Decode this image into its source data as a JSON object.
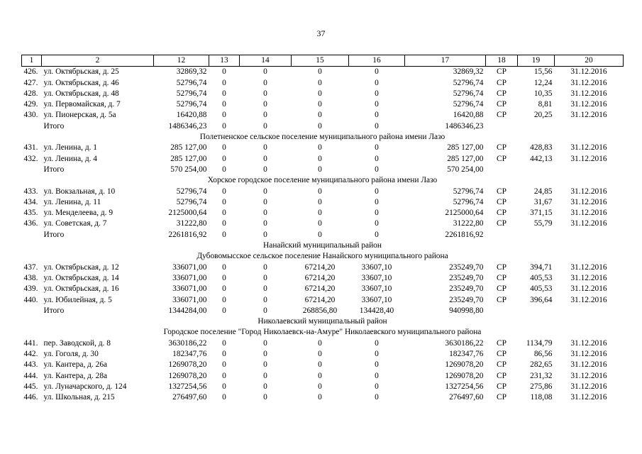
{
  "page_number": "37",
  "header": [
    "1",
    "2",
    "12",
    "13",
    "14",
    "15",
    "16",
    "17",
    "18",
    "19",
    "20"
  ],
  "rows": [
    {
      "type": "data",
      "cells": [
        "426.",
        "ул. Октябрьская, д. 25",
        "32869,32",
        "0",
        "0",
        "0",
        "0",
        "32869,32",
        "СР",
        "15,56",
        "31.12.2016"
      ]
    },
    {
      "type": "data",
      "cells": [
        "427.",
        "ул. Октябрьская, д. 46",
        "52796,74",
        "0",
        "0",
        "0",
        "0",
        "52796,74",
        "СР",
        "12,24",
        "31.12.2016"
      ]
    },
    {
      "type": "data",
      "cells": [
        "428.",
        "ул. Октябрьская, д. 48",
        "52796,74",
        "0",
        "0",
        "0",
        "0",
        "52796,74",
        "СР",
        "10,35",
        "31.12.2016"
      ]
    },
    {
      "type": "data",
      "cells": [
        "429.",
        "ул. Первомайская, д. 7",
        "52796,74",
        "0",
        "0",
        "0",
        "0",
        "52796,74",
        "СР",
        "8,81",
        "31.12.2016"
      ]
    },
    {
      "type": "data",
      "cells": [
        "430.",
        "ул. Пионерская, д. 5а",
        "16420,88",
        "0",
        "0",
        "0",
        "0",
        "16420,88",
        "СР",
        "20,25",
        "31.12.2016"
      ]
    },
    {
      "type": "total",
      "cells": [
        "Итого",
        "1486346,23",
        "0",
        "0",
        "0",
        "0",
        "1486346,23"
      ]
    },
    {
      "type": "section",
      "text": "Полетненское сельское поселение муниципального района имени Лазо"
    },
    {
      "type": "data",
      "cells": [
        "431.",
        "ул. Ленина, д. 1",
        "285 127,00",
        "0",
        "0",
        "0",
        "0",
        "285 127,00",
        "СР",
        "428,83",
        "31.12.2016"
      ]
    },
    {
      "type": "data",
      "cells": [
        "432.",
        "ул. Ленина, д. 4",
        "285 127,00",
        "0",
        "0",
        "0",
        "0",
        "285 127,00",
        "СР",
        "442,13",
        "31.12.2016"
      ]
    },
    {
      "type": "total",
      "cells": [
        "Итого",
        "570 254,00",
        "0",
        "0",
        "0",
        "0",
        "570 254,00"
      ]
    },
    {
      "type": "section",
      "text": "Хорское городское поселение муниципального района имени Лазо"
    },
    {
      "type": "data",
      "cells": [
        "433.",
        "ул. Вокзальная, д. 10",
        "52796,74",
        "0",
        "0",
        "0",
        "0",
        "52796,74",
        "СР",
        "24,85",
        "31.12.2016"
      ]
    },
    {
      "type": "data",
      "cells": [
        "434.",
        "ул. Ленина, д. 11",
        "52796,74",
        "0",
        "0",
        "0",
        "0",
        "52796,74",
        "СР",
        "31,67",
        "31.12.2016"
      ]
    },
    {
      "type": "data",
      "cells": [
        "435.",
        "ул. Менделеева, д. 9",
        "2125000,64",
        "0",
        "0",
        "0",
        "0",
        "2125000,64",
        "СР",
        "371,15",
        "31.12.2016"
      ]
    },
    {
      "type": "data",
      "cells": [
        "436.",
        "ул. Советская, д. 7",
        "31222,80",
        "0",
        "0",
        "0",
        "0",
        "31222,80",
        "СР",
        "55,79",
        "31.12.2016"
      ]
    },
    {
      "type": "total",
      "cells": [
        "Итого",
        "2261816,92",
        "0",
        "0",
        "0",
        "0",
        "2261816,92"
      ]
    },
    {
      "type": "section",
      "text": "Нанайский муниципальный район"
    },
    {
      "type": "section",
      "text": "Дубовомысское сельское поселение Нанайского муниципального района"
    },
    {
      "type": "data",
      "cells": [
        "437.",
        "ул. Октябрьская, д. 12",
        "336071,00",
        "0",
        "0",
        "67214,20",
        "33607,10",
        "235249,70",
        "СР",
        "394,71",
        "31.12.2016"
      ]
    },
    {
      "type": "data",
      "cells": [
        "438.",
        "ул. Октябрьская, д. 14",
        "336071,00",
        "0",
        "0",
        "67214,20",
        "33607,10",
        "235249,70",
        "СР",
        "405,53",
        "31.12.2016"
      ]
    },
    {
      "type": "data",
      "cells": [
        "439.",
        "ул. Октябрьская, д. 16",
        "336071,00",
        "0",
        "0",
        "67214,20",
        "33607,10",
        "235249,70",
        "СР",
        "405,53",
        "31.12.2016"
      ]
    },
    {
      "type": "data",
      "cells": [
        "440.",
        "ул. Юбилейная, д. 5",
        "336071,00",
        "0",
        "0",
        "67214,20",
        "33607,10",
        "235249,70",
        "СР",
        "396,64",
        "31.12.2016"
      ]
    },
    {
      "type": "total",
      "cells": [
        "Итого",
        "1344284,00",
        "0",
        "0",
        "268856,80",
        "134428,40",
        "940998,80"
      ]
    },
    {
      "type": "section",
      "text": "Николаевский муниципальный район"
    },
    {
      "type": "section",
      "text": "Городское поселение \"Город Николаевск-на-Амуре\" Николаевского муниципального района"
    },
    {
      "type": "data",
      "cells": [
        "441.",
        "пер. Заводской, д. 8",
        "3630186,22",
        "0",
        "0",
        "0",
        "0",
        "3630186,22",
        "СР",
        "1134,79",
        "31.12.2016"
      ]
    },
    {
      "type": "data",
      "cells": [
        "442.",
        "ул. Гоголя, д. 30",
        "182347,76",
        "0",
        "0",
        "0",
        "0",
        "182347,76",
        "СР",
        "86,56",
        "31.12.2016"
      ]
    },
    {
      "type": "data",
      "cells": [
        "443.",
        "ул. Кантера, д. 26а",
        "1269078,20",
        "0",
        "0",
        "0",
        "0",
        "1269078,20",
        "СР",
        "282,65",
        "31.12.2016"
      ]
    },
    {
      "type": "data",
      "cells": [
        "444.",
        "ул. Кантера, д. 28а",
        "1269078,20",
        "0",
        "0",
        "0",
        "0",
        "1269078,20",
        "СР",
        "231,32",
        "31.12.2016"
      ]
    },
    {
      "type": "data",
      "cells": [
        "445.",
        "ул. Луначарского, д. 124",
        "1327254,56",
        "0",
        "0",
        "0",
        "0",
        "1327254,56",
        "СР",
        "275,86",
        "31.12.2016"
      ]
    },
    {
      "type": "data",
      "cells": [
        "446.",
        "ул. Школьная, д. 215",
        "276497,60",
        "0",
        "0",
        "0",
        "0",
        "276497,60",
        "СР",
        "118,08",
        "31.12.2016"
      ]
    }
  ]
}
